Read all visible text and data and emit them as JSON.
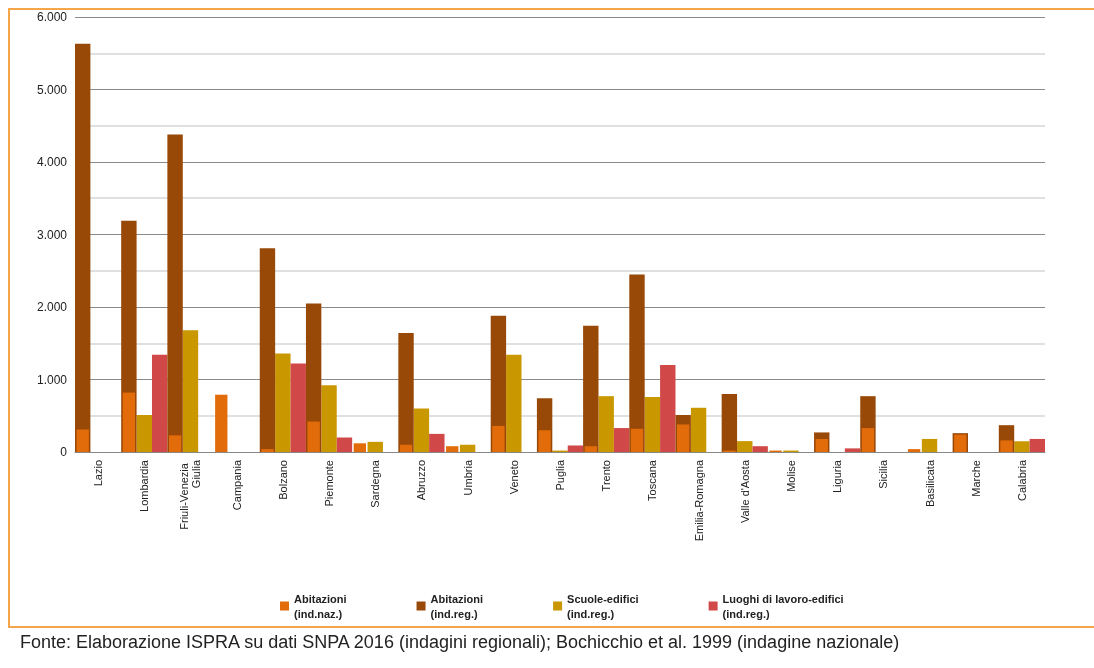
{
  "chart_data": {
    "type": "bar",
    "categories": [
      "Lazio",
      "Lombardia",
      "Friuli-Venezia Giulia",
      "Campania",
      "Bolzano",
      "Piemonte",
      "Sardegna",
      "Abruzzo",
      "Umbria",
      "Veneto",
      "Puglia",
      "Trento",
      "Toscana",
      "Emilia-Romagna",
      "Valle d'Aosta",
      "Molise",
      "Liguria",
      "Sicilia",
      "Basilicata",
      "Marche",
      "Calabria"
    ],
    "series": [
      {
        "name": "Abitazioni\n(ind.naz.)",
        "color": "#e36c0a",
        "values": [
          310,
          820,
          230,
          790,
          40,
          420,
          120,
          100,
          80,
          360,
          300,
          80,
          320,
          380,
          20,
          20,
          180,
          330,
          40,
          240,
          160
        ]
      },
      {
        "name": "Abitazioni\n(ind.reg.)",
        "color": "#984807",
        "values": [
          5630,
          3190,
          4380,
          null,
          2810,
          2050,
          null,
          1640,
          null,
          1880,
          740,
          1740,
          2450,
          510,
          800,
          null,
          270,
          770,
          null,
          260,
          370
        ]
      },
      {
        "name": "Scuole-edifici\n(ind.reg.)",
        "color": "#c99700",
        "values": [
          null,
          510,
          1680,
          null,
          1360,
          920,
          140,
          600,
          100,
          1340,
          20,
          770,
          760,
          610,
          150,
          20,
          null,
          null,
          180,
          null,
          150
        ]
      },
      {
        "name": "Luoghi di lavoro-edifici\n(ind.reg.)",
        "color": "#d04848",
        "values": [
          null,
          1340,
          null,
          null,
          1220,
          200,
          null,
          250,
          null,
          null,
          90,
          330,
          1200,
          null,
          80,
          null,
          50,
          null,
          null,
          null,
          180
        ]
      }
    ],
    "ylim": [
      0,
      6000
    ],
    "yticks": [
      {
        "value": 0,
        "label": "0"
      },
      {
        "value": 1000,
        "label": "1.000"
      },
      {
        "value": 2000,
        "label": "2.000"
      },
      {
        "value": 3000,
        "label": "3.000"
      },
      {
        "value": 4000,
        "label": "4.000"
      },
      {
        "value": 5000,
        "label": "5.000"
      },
      {
        "value": 6000,
        "label": "6.000"
      }
    ],
    "grid": "y",
    "legend": "bottom",
    "annotations": [
      "Fonte: Elaborazione ISPRA su dati SNPA 2016 (indagini regionali); Bochicchio et al. 1999 (indagine nazionale)"
    ]
  }
}
